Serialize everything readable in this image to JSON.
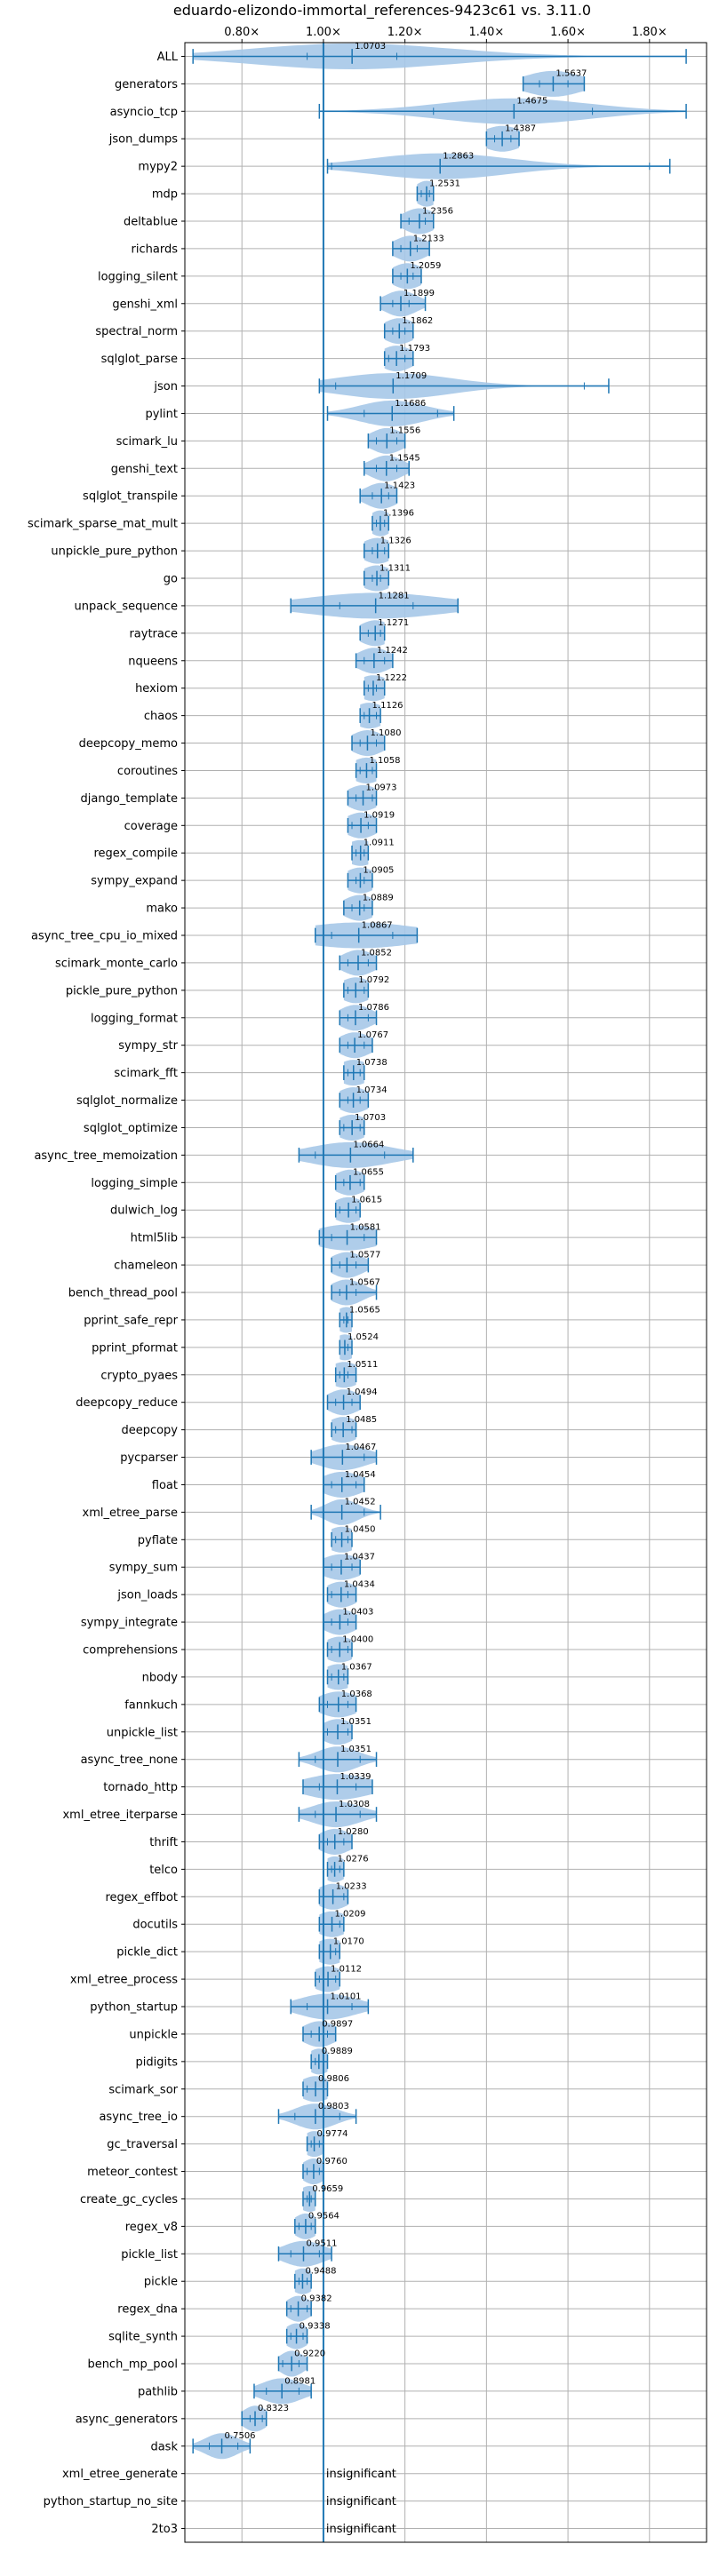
{
  "chart_data": {
    "type": "violin",
    "title": "eduardo-elizondo-immortal_references-9423c61 vs. 3.11.0",
    "xlabel": "",
    "ylabel": "",
    "xlim": [
      0.66,
      1.94
    ],
    "xticks": [
      0.8,
      1.0,
      1.2,
      1.4,
      1.6,
      1.8
    ],
    "xtick_labels": [
      "0.80×",
      "1.00×",
      "1.20×",
      "1.40×",
      "1.60×",
      "1.80×"
    ],
    "reference_line": 1.0,
    "grid": true,
    "colors": {
      "line": "#1f77b4",
      "violin": "#a6c8e8",
      "grid": "#b0b0b0",
      "text": "#000000"
    },
    "insignificant_label": "insignificant",
    "benchmarks": [
      {
        "name": "ALL",
        "mean": 1.0703,
        "min": 0.68,
        "max": 1.89,
        "q1": 0.96,
        "q3": 1.18,
        "w": 0.04
      },
      {
        "name": "generators",
        "mean": 1.5637,
        "min": 1.49,
        "max": 1.64,
        "q1": 1.53,
        "q3": 1.6,
        "w": 0.07
      },
      {
        "name": "asyncio_tcp",
        "mean": 1.4675,
        "min": 0.99,
        "max": 1.89,
        "q1": 1.27,
        "q3": 1.66,
        "w": 0.16
      },
      {
        "name": "json_dumps",
        "mean": 1.4387,
        "min": 1.4,
        "max": 1.48,
        "q1": 1.42,
        "q3": 1.46,
        "w": 0.05
      },
      {
        "name": "mypy2",
        "mean": 1.2863,
        "min": 1.01,
        "max": 1.85,
        "q1": 1.02,
        "q3": 1.8,
        "w": 0.02
      },
      {
        "name": "mdp",
        "mean": 1.2531,
        "min": 1.23,
        "max": 1.27,
        "q1": 1.24,
        "q3": 1.26,
        "w": 0.03
      },
      {
        "name": "deltablue",
        "mean": 1.2356,
        "min": 1.19,
        "max": 1.27,
        "q1": 1.21,
        "q3": 1.25,
        "w": 0.04
      },
      {
        "name": "richards",
        "mean": 1.2133,
        "min": 1.17,
        "max": 1.26,
        "q1": 1.19,
        "q3": 1.23,
        "w": 0.04
      },
      {
        "name": "logging_silent",
        "mean": 1.2059,
        "min": 1.17,
        "max": 1.24,
        "q1": 1.19,
        "q3": 1.22,
        "w": 0.04
      },
      {
        "name": "genshi_xml",
        "mean": 1.1899,
        "min": 1.14,
        "max": 1.25,
        "q1": 1.17,
        "q3": 1.21,
        "w": 0.04
      },
      {
        "name": "spectral_norm",
        "mean": 1.1862,
        "min": 1.15,
        "max": 1.22,
        "q1": 1.17,
        "q3": 1.2,
        "w": 0.04
      },
      {
        "name": "sqlglot_parse",
        "mean": 1.1793,
        "min": 1.15,
        "max": 1.22,
        "q1": 1.16,
        "q3": 1.2,
        "w": 0.04
      },
      {
        "name": "json",
        "mean": 1.1709,
        "min": 0.99,
        "max": 1.7,
        "q1": 1.03,
        "q3": 1.64,
        "w": 0.1
      },
      {
        "name": "pylint",
        "mean": 1.1686,
        "min": 1.01,
        "max": 1.32,
        "q1": 1.1,
        "q3": 1.28,
        "w": 0.08
      },
      {
        "name": "scimark_lu",
        "mean": 1.1556,
        "min": 1.11,
        "max": 1.2,
        "q1": 1.13,
        "q3": 1.18,
        "w": 0.04
      },
      {
        "name": "genshi_text",
        "mean": 1.1545,
        "min": 1.1,
        "max": 1.21,
        "q1": 1.13,
        "q3": 1.18,
        "w": 0.04
      },
      {
        "name": "sqlglot_transpile",
        "mean": 1.1423,
        "min": 1.09,
        "max": 1.18,
        "q1": 1.12,
        "q3": 1.16,
        "w": 0.04
      },
      {
        "name": "scimark_sparse_mat_mult",
        "mean": 1.1396,
        "min": 1.12,
        "max": 1.16,
        "q1": 1.13,
        "q3": 1.15,
        "w": 0.03
      },
      {
        "name": "unpickle_pure_python",
        "mean": 1.1326,
        "min": 1.1,
        "max": 1.16,
        "q1": 1.12,
        "q3": 1.15,
        "w": 0.04
      },
      {
        "name": "go",
        "mean": 1.1311,
        "min": 1.1,
        "max": 1.16,
        "q1": 1.12,
        "q3": 1.14,
        "w": 0.04
      },
      {
        "name": "unpack_sequence",
        "mean": 1.1281,
        "min": 0.92,
        "max": 1.33,
        "q1": 1.04,
        "q3": 1.22,
        "w": 0.17
      },
      {
        "name": "raytrace",
        "mean": 1.1271,
        "min": 1.09,
        "max": 1.15,
        "q1": 1.11,
        "q3": 1.14,
        "w": 0.04
      },
      {
        "name": "nqueens",
        "mean": 1.1242,
        "min": 1.08,
        "max": 1.17,
        "q1": 1.1,
        "q3": 1.15,
        "w": 0.04
      },
      {
        "name": "hexiom",
        "mean": 1.1222,
        "min": 1.1,
        "max": 1.15,
        "q1": 1.11,
        "q3": 1.13,
        "w": 0.04
      },
      {
        "name": "chaos",
        "mean": 1.1126,
        "min": 1.09,
        "max": 1.14,
        "q1": 1.1,
        "q3": 1.13,
        "w": 0.04
      },
      {
        "name": "deepcopy_memo",
        "mean": 1.108,
        "min": 1.07,
        "max": 1.15,
        "q1": 1.09,
        "q3": 1.13,
        "w": 0.04
      },
      {
        "name": "coroutines",
        "mean": 1.1058,
        "min": 1.08,
        "max": 1.13,
        "q1": 1.09,
        "q3": 1.12,
        "w": 0.04
      },
      {
        "name": "django_template",
        "mean": 1.0973,
        "min": 1.06,
        "max": 1.13,
        "q1": 1.08,
        "q3": 1.12,
        "w": 0.04
      },
      {
        "name": "coverage",
        "mean": 1.0919,
        "min": 1.06,
        "max": 1.13,
        "q1": 1.07,
        "q3": 1.11,
        "w": 0.04
      },
      {
        "name": "regex_compile",
        "mean": 1.0911,
        "min": 1.07,
        "max": 1.11,
        "q1": 1.08,
        "q3": 1.1,
        "w": 0.04
      },
      {
        "name": "sympy_expand",
        "mean": 1.0905,
        "min": 1.06,
        "max": 1.12,
        "q1": 1.08,
        "q3": 1.1,
        "w": 0.04
      },
      {
        "name": "mako",
        "mean": 1.0889,
        "min": 1.05,
        "max": 1.12,
        "q1": 1.07,
        "q3": 1.1,
        "w": 0.04
      },
      {
        "name": "async_tree_cpu_io_mixed",
        "mean": 1.0867,
        "min": 0.98,
        "max": 1.23,
        "q1": 1.02,
        "q3": 1.17,
        "w": 0.15
      },
      {
        "name": "scimark_monte_carlo",
        "mean": 1.0852,
        "min": 1.04,
        "max": 1.13,
        "q1": 1.06,
        "q3": 1.11,
        "w": 0.04
      },
      {
        "name": "pickle_pure_python",
        "mean": 1.0792,
        "min": 1.05,
        "max": 1.11,
        "q1": 1.06,
        "q3": 1.1,
        "w": 0.04
      },
      {
        "name": "logging_format",
        "mean": 1.0786,
        "min": 1.04,
        "max": 1.13,
        "q1": 1.06,
        "q3": 1.11,
        "w": 0.04
      },
      {
        "name": "sympy_str",
        "mean": 1.0767,
        "min": 1.04,
        "max": 1.12,
        "q1": 1.06,
        "q3": 1.1,
        "w": 0.04
      },
      {
        "name": "scimark_fft",
        "mean": 1.0738,
        "min": 1.05,
        "max": 1.1,
        "q1": 1.06,
        "q3": 1.09,
        "w": 0.04
      },
      {
        "name": "sqlglot_normalize",
        "mean": 1.0734,
        "min": 1.04,
        "max": 1.11,
        "q1": 1.06,
        "q3": 1.09,
        "w": 0.04
      },
      {
        "name": "sqlglot_optimize",
        "mean": 1.0703,
        "min": 1.04,
        "max": 1.1,
        "q1": 1.05,
        "q3": 1.09,
        "w": 0.04
      },
      {
        "name": "async_tree_memoization",
        "mean": 1.0664,
        "min": 0.94,
        "max": 1.22,
        "q1": 0.98,
        "q3": 1.15,
        "w": 0.1
      },
      {
        "name": "logging_simple",
        "mean": 1.0655,
        "min": 1.03,
        "max": 1.1,
        "q1": 1.05,
        "q3": 1.09,
        "w": 0.04
      },
      {
        "name": "dulwich_log",
        "mean": 1.0615,
        "min": 1.03,
        "max": 1.09,
        "q1": 1.04,
        "q3": 1.08,
        "w": 0.04
      },
      {
        "name": "html5lib",
        "mean": 1.0581,
        "min": 0.99,
        "max": 1.13,
        "q1": 1.02,
        "q3": 1.1,
        "w": 0.08
      },
      {
        "name": "chameleon",
        "mean": 1.0577,
        "min": 1.02,
        "max": 1.11,
        "q1": 1.04,
        "q3": 1.08,
        "w": 0.04
      },
      {
        "name": "bench_thread_pool",
        "mean": 1.0567,
        "min": 1.02,
        "max": 1.13,
        "q1": 1.04,
        "q3": 1.08,
        "w": 0.04
      },
      {
        "name": "pprint_safe_repr",
        "mean": 1.0565,
        "min": 1.04,
        "max": 1.07,
        "q1": 1.05,
        "q3": 1.06,
        "w": 0.03
      },
      {
        "name": "pprint_pformat",
        "mean": 1.0524,
        "min": 1.04,
        "max": 1.07,
        "q1": 1.04,
        "q3": 1.06,
        "w": 0.03
      },
      {
        "name": "crypto_pyaes",
        "mean": 1.0511,
        "min": 1.03,
        "max": 1.08,
        "q1": 1.04,
        "q3": 1.06,
        "w": 0.04
      },
      {
        "name": "deepcopy_reduce",
        "mean": 1.0494,
        "min": 1.01,
        "max": 1.09,
        "q1": 1.03,
        "q3": 1.07,
        "w": 0.04
      },
      {
        "name": "deepcopy",
        "mean": 1.0485,
        "min": 1.02,
        "max": 1.08,
        "q1": 1.03,
        "q3": 1.07,
        "w": 0.04
      },
      {
        "name": "pycparser",
        "mean": 1.0467,
        "min": 0.97,
        "max": 1.13,
        "q1": 1.0,
        "q3": 1.1,
        "w": 0.06
      },
      {
        "name": "float",
        "mean": 1.0454,
        "min": 1.0,
        "max": 1.1,
        "q1": 1.02,
        "q3": 1.08,
        "w": 0.05
      },
      {
        "name": "xml_etree_parse",
        "mean": 1.0452,
        "min": 0.97,
        "max": 1.14,
        "q1": 1.0,
        "q3": 1.1,
        "w": 0.04
      },
      {
        "name": "pyflate",
        "mean": 1.045,
        "min": 1.02,
        "max": 1.07,
        "q1": 1.03,
        "q3": 1.06,
        "w": 0.04
      },
      {
        "name": "sympy_sum",
        "mean": 1.0437,
        "min": 1.0,
        "max": 1.09,
        "q1": 1.02,
        "q3": 1.07,
        "w": 0.05
      },
      {
        "name": "json_loads",
        "mean": 1.0434,
        "min": 1.01,
        "max": 1.08,
        "q1": 1.02,
        "q3": 1.06,
        "w": 0.04
      },
      {
        "name": "sympy_integrate",
        "mean": 1.0403,
        "min": 1.0,
        "max": 1.08,
        "q1": 1.02,
        "q3": 1.06,
        "w": 0.04
      },
      {
        "name": "comprehensions",
        "mean": 1.04,
        "min": 1.01,
        "max": 1.07,
        "q1": 1.02,
        "q3": 1.06,
        "w": 0.04
      },
      {
        "name": "nbody",
        "mean": 1.0367,
        "min": 1.01,
        "max": 1.06,
        "q1": 1.02,
        "q3": 1.05,
        "w": 0.04
      },
      {
        "name": "fannkuch",
        "mean": 1.0368,
        "min": 0.99,
        "max": 1.08,
        "q1": 1.01,
        "q3": 1.06,
        "w": 0.05
      },
      {
        "name": "unpickle_list",
        "mean": 1.0351,
        "min": 1.0,
        "max": 1.07,
        "q1": 1.01,
        "q3": 1.06,
        "w": 0.04
      },
      {
        "name": "async_tree_none",
        "mean": 1.0351,
        "min": 0.94,
        "max": 1.13,
        "q1": 0.98,
        "q3": 1.09,
        "w": 0.05
      },
      {
        "name": "tornado_http",
        "mean": 1.0339,
        "min": 0.95,
        "max": 1.12,
        "q1": 0.99,
        "q3": 1.08,
        "w": 0.08
      },
      {
        "name": "xml_etree_iterparse",
        "mean": 1.0308,
        "min": 0.94,
        "max": 1.13,
        "q1": 0.98,
        "q3": 1.09,
        "w": 0.06
      },
      {
        "name": "thrift",
        "mean": 1.028,
        "min": 0.99,
        "max": 1.07,
        "q1": 1.01,
        "q3": 1.05,
        "w": 0.04
      },
      {
        "name": "telco",
        "mean": 1.0276,
        "min": 1.01,
        "max": 1.05,
        "q1": 1.02,
        "q3": 1.04,
        "w": 0.03
      },
      {
        "name": "regex_effbot",
        "mean": 1.0233,
        "min": 0.99,
        "max": 1.06,
        "q1": 1.0,
        "q3": 1.05,
        "w": 0.04
      },
      {
        "name": "docutils",
        "mean": 1.0209,
        "min": 0.99,
        "max": 1.05,
        "q1": 1.0,
        "q3": 1.04,
        "w": 0.04
      },
      {
        "name": "pickle_dict",
        "mean": 1.017,
        "min": 0.99,
        "max": 1.04,
        "q1": 1.0,
        "q3": 1.03,
        "w": 0.04
      },
      {
        "name": "xml_etree_process",
        "mean": 1.0112,
        "min": 0.98,
        "max": 1.04,
        "q1": 0.99,
        "q3": 1.03,
        "w": 0.04
      },
      {
        "name": "python_startup",
        "mean": 1.0101,
        "min": 0.92,
        "max": 1.11,
        "q1": 0.96,
        "q3": 1.07,
        "w": 0.07
      },
      {
        "name": "unpickle",
        "mean": 0.9897,
        "min": 0.95,
        "max": 1.03,
        "q1": 0.97,
        "q3": 1.01,
        "w": 0.04
      },
      {
        "name": "pidigits",
        "mean": 0.9889,
        "min": 0.97,
        "max": 1.01,
        "q1": 0.98,
        "q3": 1.0,
        "w": 0.03
      },
      {
        "name": "scimark_sor",
        "mean": 0.9806,
        "min": 0.95,
        "max": 1.01,
        "q1": 0.96,
        "q3": 1.0,
        "w": 0.04
      },
      {
        "name": "async_tree_io",
        "mean": 0.9803,
        "min": 0.89,
        "max": 1.08,
        "q1": 0.93,
        "q3": 1.04,
        "w": 0.05
      },
      {
        "name": "gc_traversal",
        "mean": 0.9774,
        "min": 0.96,
        "max": 1.0,
        "q1": 0.97,
        "q3": 0.99,
        "w": 0.03
      },
      {
        "name": "meteor_contest",
        "mean": 0.976,
        "min": 0.95,
        "max": 1.0,
        "q1": 0.96,
        "q3": 0.99,
        "w": 0.03
      },
      {
        "name": "create_gc_cycles",
        "mean": 0.9659,
        "min": 0.95,
        "max": 0.98,
        "q1": 0.96,
        "q3": 0.97,
        "w": 0.03
      },
      {
        "name": "regex_v8",
        "mean": 0.9564,
        "min": 0.93,
        "max": 0.98,
        "q1": 0.94,
        "q3": 0.97,
        "w": 0.03
      },
      {
        "name": "pickle_list",
        "mean": 0.9511,
        "min": 0.89,
        "max": 1.02,
        "q1": 0.92,
        "q3": 0.99,
        "w": 0.05
      },
      {
        "name": "pickle",
        "mean": 0.9488,
        "min": 0.93,
        "max": 0.97,
        "q1": 0.94,
        "q3": 0.96,
        "w": 0.03
      },
      {
        "name": "regex_dna",
        "mean": 0.9382,
        "min": 0.91,
        "max": 0.97,
        "q1": 0.92,
        "q3": 0.96,
        "w": 0.03
      },
      {
        "name": "sqlite_synth",
        "mean": 0.9338,
        "min": 0.91,
        "max": 0.96,
        "q1": 0.92,
        "q3": 0.95,
        "w": 0.03
      },
      {
        "name": "bench_mp_pool",
        "mean": 0.922,
        "min": 0.89,
        "max": 0.96,
        "q1": 0.9,
        "q3": 0.94,
        "w": 0.03
      },
      {
        "name": "pathlib",
        "mean": 0.8981,
        "min": 0.83,
        "max": 0.97,
        "q1": 0.86,
        "q3": 0.94,
        "w": 0.05
      },
      {
        "name": "async_generators",
        "mean": 0.8323,
        "min": 0.8,
        "max": 0.86,
        "q1": 0.82,
        "q3": 0.85,
        "w": 0.03
      },
      {
        "name": "dask",
        "mean": 0.7506,
        "min": 0.68,
        "max": 0.82,
        "q1": 0.72,
        "q3": 0.79,
        "w": 0.04
      },
      {
        "name": "xml_etree_generate",
        "insignificant": true
      },
      {
        "name": "python_startup_no_site",
        "insignificant": true
      },
      {
        "name": "2to3",
        "insignificant": true
      }
    ]
  }
}
